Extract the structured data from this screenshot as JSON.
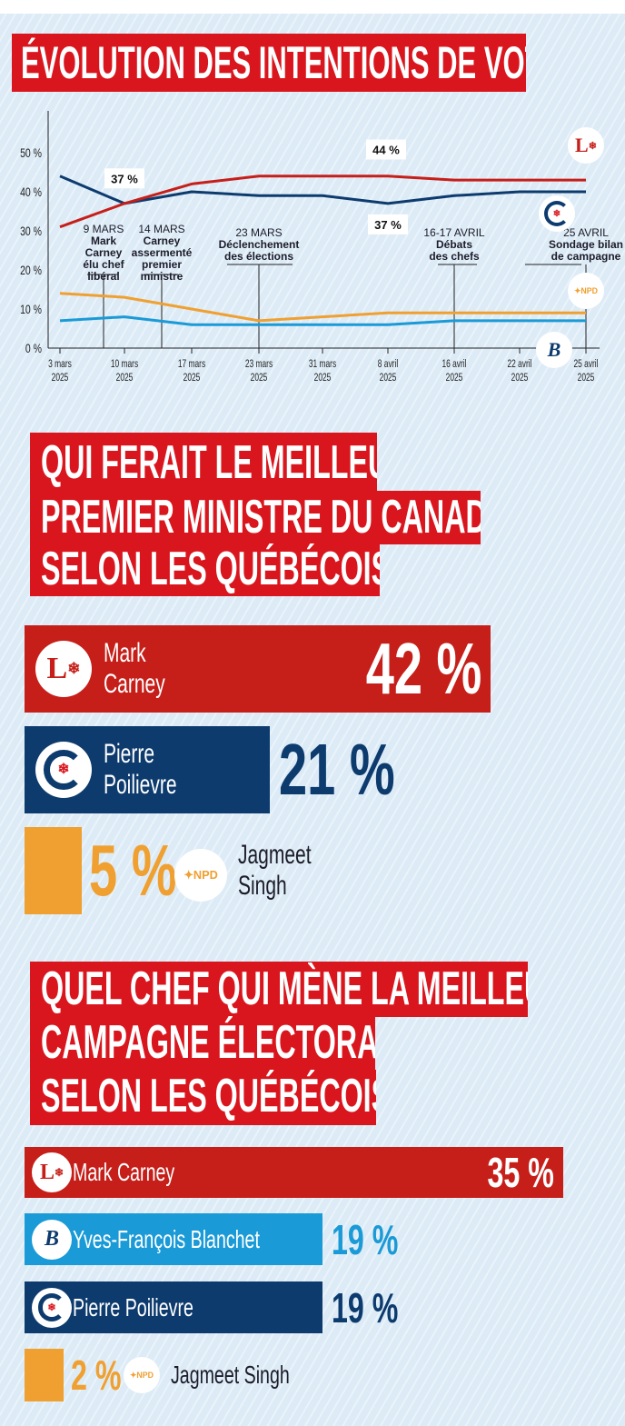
{
  "colors": {
    "liberal": "#c61f1a",
    "conservative": "#0d3b6e",
    "bloc": "#1a9ad6",
    "npd": "#f0a030",
    "title_bg": "#d9161e"
  },
  "section1": {
    "title": "ÉVOLUTION DES INTENTIONS DE VOTE"
  },
  "chart_data": [
    {
      "type": "line",
      "title": "ÉVOLUTION DES INTENTIONS DE VOTE",
      "x": [
        "3 mars 2025",
        "10 mars 2025",
        "17 mars 2025",
        "23 mars 2025",
        "31 mars 2025",
        "8 avril 2025",
        "16 avril 2025",
        "22 avril 2025",
        "25 avril 2025"
      ],
      "x_ticks": [
        [
          "3 mars",
          "2025"
        ],
        [
          "10 mars",
          "2025"
        ],
        [
          "17 mars",
          "2025"
        ],
        [
          "23 mars",
          "2025"
        ],
        [
          "31 mars",
          "2025"
        ],
        [
          "8 avril",
          "2025"
        ],
        [
          "16 avril",
          "2025"
        ],
        [
          "22 avril",
          "2025"
        ],
        [
          "25 avril",
          "2025"
        ]
      ],
      "y_ticks": [
        "0 %",
        "10 %",
        "20 %",
        "30 %",
        "40 %",
        "50 %"
      ],
      "ylim": [
        0,
        50
      ],
      "grid": false,
      "series": [
        {
          "party": "liberal",
          "logo": "liberal-logo",
          "values": [
            31,
            37,
            42,
            44,
            44,
            44,
            43,
            43,
            43
          ]
        },
        {
          "party": "conservative",
          "logo": "conservative-logo",
          "values": [
            44,
            37,
            40,
            39,
            39,
            37,
            39,
            40,
            40
          ]
        },
        {
          "party": "npd",
          "logo": "npd-logo",
          "values": [
            14,
            13,
            10,
            7,
            8,
            9,
            9,
            9,
            9
          ]
        },
        {
          "party": "bloc",
          "logo": "bloc-logo",
          "values": [
            7,
            8,
            6,
            6,
            6,
            6,
            7,
            7,
            7
          ]
        }
      ],
      "data_labels": [
        {
          "x": "10 mars 2025",
          "text": "37 %"
        },
        {
          "x": "8 avril 2025",
          "text": "44 %"
        },
        {
          "x": "8 avril 2025",
          "text": "37 %"
        }
      ],
      "annotations": [
        {
          "date": "9 MARS",
          "lines": [
            "Mark",
            "Carney",
            "élu chef",
            "libéral"
          ]
        },
        {
          "date": "14 MARS",
          "lines": [
            "Carney",
            "assermenté",
            "premier",
            "ministre"
          ]
        },
        {
          "date": "23 MARS",
          "lines": [
            "Déclenchement",
            "des élections"
          ]
        },
        {
          "date": "16-17 AVRIL",
          "lines": [
            "Débats",
            "des chefs"
          ]
        },
        {
          "date": "25 AVRIL",
          "lines": [
            "Sondage bilan",
            "de campagne"
          ]
        }
      ]
    },
    {
      "type": "bar",
      "title": "QUI FERAIT LE MEILLEUR PREMIER MINISTRE DU CANADA SELON LES QUÉBÉCOIS ?",
      "categories": [
        "Mark Carney",
        "Pierre Poilievre",
        "Jagmeet Singh"
      ],
      "values": [
        42,
        21,
        5
      ],
      "labels": [
        "42 %",
        "21 %",
        "5 %"
      ],
      "name_lines": [
        [
          "Mark",
          "Carney"
        ],
        [
          "Pierre",
          "Poilievre"
        ],
        [
          "Jagmeet",
          "Singh"
        ]
      ]
    },
    {
      "type": "bar",
      "title": "QUEL CHEF QUI MÈNE LA MEILLEURE CAMPAGNE ÉLECTORALE SELON LES QUÉBÉCOIS ?",
      "categories": [
        "Mark Carney",
        "Yves-François Blanchet",
        "Pierre Poilievre",
        "Jagmeet Singh"
      ],
      "values": [
        35,
        19,
        19,
        2
      ],
      "labels": [
        "35 %",
        "19 %",
        "19 %",
        "2 %"
      ]
    }
  ],
  "section2": {
    "title_lines": [
      "QUI FERAIT LE MEILLEUR",
      "PREMIER MINISTRE DU CANADA",
      "SELON LES QUÉBÉCOIS ?"
    ]
  },
  "section3": {
    "title_lines": [
      "QUEL CHEF QUI MÈNE LA MEILLEURE",
      "CAMPAGNE ÉLECTORALE",
      "SELON LES QUÉBÉCOIS ?"
    ]
  },
  "logos": {
    "npd_text": "NPD",
    "liberal_letter": "L"
  }
}
